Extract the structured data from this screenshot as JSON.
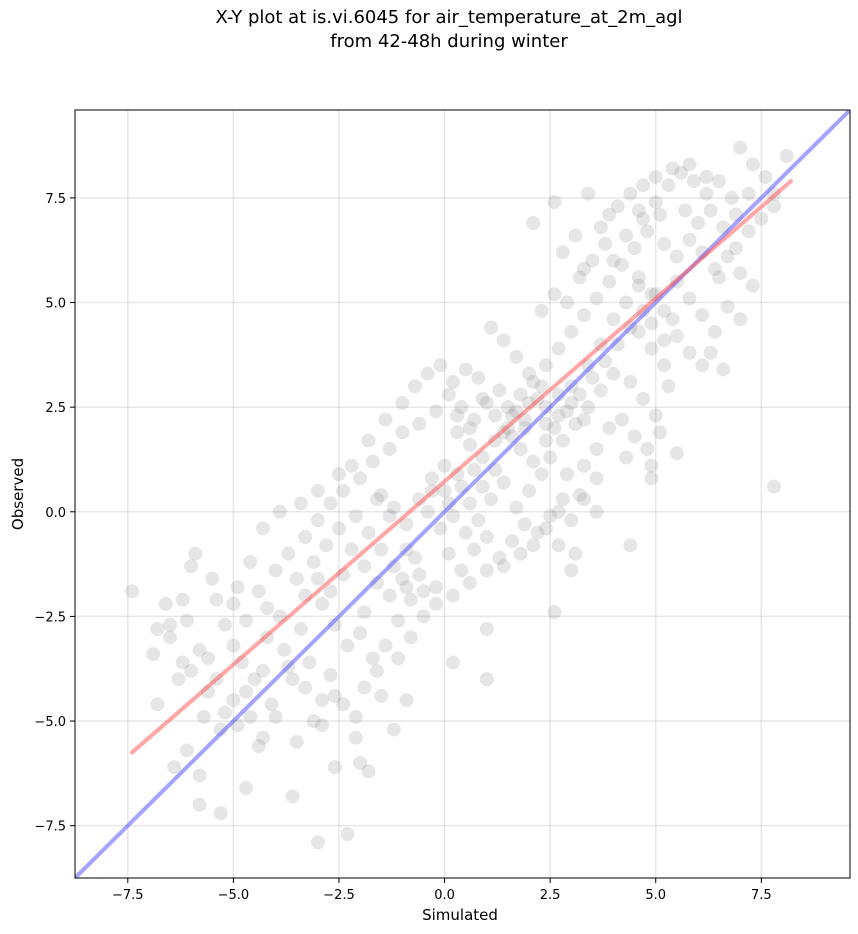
{
  "chart_data": {
    "type": "scatter",
    "title": "X-Y plot at is.vi.6045 for air_temperature_at_2m_agl",
    "subtitle": "from 42-48h during winter",
    "xlabel": "Simulated",
    "ylabel": "Observed",
    "xlim": [
      -8.75,
      9.6
    ],
    "ylim": [
      -8.75,
      9.6
    ],
    "xticks": [
      -7.5,
      -5.0,
      -2.5,
      0.0,
      2.5,
      5.0,
      7.5
    ],
    "yticks": [
      -7.5,
      -5.0,
      -2.5,
      0.0,
      2.5,
      5.0,
      7.5
    ],
    "xtick_labels": [
      "−7.5",
      "−5.0",
      "−2.5",
      "0.0",
      "2.5",
      "5.0",
      "7.5"
    ],
    "ytick_labels": [
      "−7.5",
      "−5.0",
      "−2.5",
      "0.0",
      "2.5",
      "5.0",
      "7.5"
    ],
    "grid": true,
    "point_color": "#808080",
    "regression_color": "#ff4d4d",
    "identity_color": "#4a4aff",
    "regression_line": {
      "x": [
        -7.4,
        8.2
      ],
      "y": [
        -5.75,
        7.9
      ]
    },
    "identity_line": {
      "x": [
        -8.75,
        9.6
      ],
      "y": [
        -8.75,
        9.6
      ]
    },
    "points": [
      [
        -7.4,
        -1.9
      ],
      [
        -6.8,
        -2.8
      ],
      [
        -6.2,
        -2.1
      ],
      [
        -5.9,
        -1.0
      ],
      [
        -5.5,
        -1.6
      ],
      [
        -5.0,
        -2.2
      ],
      [
        -6.5,
        -3.0
      ],
      [
        -6.9,
        -3.4
      ],
      [
        -6.0,
        -3.8
      ],
      [
        -5.6,
        -4.3
      ],
      [
        -6.3,
        -4.0
      ],
      [
        -6.8,
        -4.6
      ],
      [
        -5.7,
        -4.9
      ],
      [
        -5.2,
        -4.8
      ],
      [
        -4.9,
        -5.1
      ],
      [
        -4.6,
        -4.9
      ],
      [
        -6.1,
        -5.7
      ],
      [
        -6.4,
        -6.1
      ],
      [
        -5.8,
        -6.3
      ],
      [
        -5.8,
        -7.0
      ],
      [
        -5.3,
        -7.2
      ],
      [
        -4.7,
        -6.6
      ],
      [
        -4.3,
        -5.4
      ],
      [
        -4.0,
        -4.9
      ],
      [
        -3.6,
        -6.8
      ],
      [
        -3.0,
        -7.9
      ],
      [
        -2.3,
        -7.7
      ],
      [
        -2.0,
        -6.0
      ],
      [
        -1.8,
        -6.2
      ],
      [
        -2.1,
        -5.4
      ],
      [
        -2.6,
        -6.1
      ],
      [
        -3.1,
        -5.0
      ],
      [
        -2.9,
        -5.1
      ],
      [
        -2.6,
        -4.4
      ],
      [
        -3.3,
        -4.2
      ],
      [
        -3.6,
        -4.0
      ],
      [
        -4.1,
        -4.6
      ],
      [
        -4.5,
        -4.0
      ],
      [
        -4.8,
        -3.6
      ],
      [
        -5.0,
        -3.2
      ],
      [
        -4.7,
        -2.6
      ],
      [
        -4.2,
        -2.3
      ],
      [
        -4.4,
        -1.9
      ],
      [
        -4.0,
        -1.4
      ],
      [
        -3.7,
        -1.0
      ],
      [
        -3.3,
        -0.6
      ],
      [
        -3.0,
        -0.2
      ],
      [
        -2.7,
        0.2
      ],
      [
        -2.4,
        0.5
      ],
      [
        -2.0,
        0.8
      ],
      [
        -1.7,
        1.2
      ],
      [
        -1.3,
        1.5
      ],
      [
        -1.0,
        1.9
      ],
      [
        -2.2,
        1.1
      ],
      [
        -1.5,
        0.4
      ],
      [
        -1.2,
        0.1
      ],
      [
        -0.9,
        -0.3
      ],
      [
        -0.6,
        0.3
      ],
      [
        -0.3,
        0.8
      ],
      [
        0.0,
        1.1
      ],
      [
        -3.5,
        -1.6
      ],
      [
        -3.1,
        -1.2
      ],
      [
        -2.8,
        -0.8
      ],
      [
        -2.5,
        -0.4
      ],
      [
        -2.2,
        -0.9
      ],
      [
        -1.9,
        -1.3
      ],
      [
        -1.6,
        -1.7
      ],
      [
        -1.3,
        -2.0
      ],
      [
        -1.0,
        -1.6
      ],
      [
        -0.7,
        -1.1
      ],
      [
        -2.9,
        -2.2
      ],
      [
        -2.6,
        -2.7
      ],
      [
        -2.3,
        -3.2
      ],
      [
        -2.0,
        -2.9
      ],
      [
        -1.7,
        -3.5
      ],
      [
        -1.4,
        -3.2
      ],
      [
        -1.1,
        -2.6
      ],
      [
        -0.8,
        -2.1
      ],
      [
        -3.4,
        -2.8
      ],
      [
        -3.8,
        -3.3
      ],
      [
        -4.2,
        -3.0
      ],
      [
        -3.9,
        -2.5
      ],
      [
        -3.2,
        -3.6
      ],
      [
        -2.7,
        -3.9
      ],
      [
        -2.4,
        -4.6
      ],
      [
        -1.9,
        -4.2
      ],
      [
        -1.6,
        -3.8
      ],
      [
        -1.2,
        -5.2
      ],
      [
        -0.9,
        -4.5
      ],
      [
        -3.5,
        -5.5
      ],
      [
        -4.4,
        -5.6
      ],
      [
        -5.3,
        -5.2
      ],
      [
        -5.6,
        -3.5
      ],
      [
        -6.1,
        -2.6
      ],
      [
        -5.2,
        -2.7
      ],
      [
        -4.9,
        -1.8
      ],
      [
        -5.4,
        -2.1
      ],
      [
        -6.6,
        -2.2
      ],
      [
        -6.0,
        -1.3
      ],
      [
        -4.6,
        -1.2
      ],
      [
        -4.3,
        -0.4
      ],
      [
        -3.9,
        0.0
      ],
      [
        -3.4,
        0.2
      ],
      [
        -3.0,
        0.5
      ],
      [
        -2.5,
        0.9
      ],
      [
        -1.8,
        1.7
      ],
      [
        -1.4,
        2.2
      ],
      [
        -1.0,
        2.6
      ],
      [
        -0.7,
        3.0
      ],
      [
        -0.4,
        3.3
      ],
      [
        -0.1,
        3.5
      ],
      [
        0.2,
        3.1
      ],
      [
        0.5,
        3.4
      ],
      [
        0.8,
        3.2
      ],
      [
        -0.6,
        2.1
      ],
      [
        -0.2,
        2.4
      ],
      [
        0.1,
        2.8
      ],
      [
        0.4,
        2.5
      ],
      [
        0.7,
        2.2
      ],
      [
        1.0,
        2.6
      ],
      [
        1.3,
        2.9
      ],
      [
        1.6,
        2.3
      ],
      [
        1.9,
        2.0
      ],
      [
        2.2,
        2.7
      ],
      [
        0.3,
        1.9
      ],
      [
        0.6,
        1.6
      ],
      [
        0.9,
        1.3
      ],
      [
        1.2,
        1.7
      ],
      [
        1.5,
        2.0
      ],
      [
        1.8,
        1.5
      ],
      [
        0.0,
        0.5
      ],
      [
        0.3,
        0.9
      ],
      [
        0.6,
        0.2
      ],
      [
        0.9,
        0.6
      ],
      [
        1.2,
        1.0
      ],
      [
        -0.4,
        0.0
      ],
      [
        -0.1,
        -0.4
      ],
      [
        0.2,
        -0.1
      ],
      [
        0.5,
        -0.5
      ],
      [
        0.8,
        -0.2
      ],
      [
        1.1,
        0.3
      ],
      [
        1.4,
        0.7
      ],
      [
        1.7,
        0.1
      ],
      [
        2.0,
        0.5
      ],
      [
        2.3,
        0.9
      ],
      [
        0.1,
        -1.0
      ],
      [
        0.4,
        -1.4
      ],
      [
        0.7,
        -0.9
      ],
      [
        1.0,
        -0.6
      ],
      [
        1.3,
        -1.1
      ],
      [
        1.6,
        -0.7
      ],
      [
        1.9,
        -0.3
      ],
      [
        2.2,
        -0.5
      ],
      [
        2.5,
        -0.1
      ],
      [
        2.8,
        0.3
      ],
      [
        3.1,
        -1.0
      ],
      [
        3.0,
        -1.4
      ],
      [
        2.7,
        -0.8
      ],
      [
        -0.5,
        -1.9
      ],
      [
        -0.2,
        -2.2
      ],
      [
        0.2,
        -3.6
      ],
      [
        1.0,
        -2.8
      ],
      [
        1.0,
        -4.0
      ],
      [
        2.6,
        -2.4
      ],
      [
        4.4,
        -0.8
      ],
      [
        7.8,
        0.6
      ],
      [
        -0.9,
        -0.9
      ],
      [
        -0.6,
        -1.5
      ],
      [
        -1.3,
        -0.1
      ],
      [
        -1.6,
        0.3
      ],
      [
        2.5,
        1.3
      ],
      [
        2.8,
        1.7
      ],
      [
        3.1,
        2.1
      ],
      [
        3.4,
        2.5
      ],
      [
        3.7,
        2.9
      ],
      [
        4.0,
        3.3
      ],
      [
        2.6,
        2.0
      ],
      [
        2.9,
        2.4
      ],
      [
        3.2,
        2.8
      ],
      [
        3.5,
        3.2
      ],
      [
        3.8,
        3.6
      ],
      [
        4.1,
        4.0
      ],
      [
        4.4,
        4.4
      ],
      [
        4.7,
        4.8
      ],
      [
        5.0,
        5.2
      ],
      [
        2.4,
        3.5
      ],
      [
        2.7,
        3.9
      ],
      [
        3.0,
        4.3
      ],
      [
        3.3,
        4.7
      ],
      [
        3.6,
        5.1
      ],
      [
        3.9,
        5.5
      ],
      [
        4.2,
        5.9
      ],
      [
        4.5,
        6.3
      ],
      [
        4.8,
        6.7
      ],
      [
        5.1,
        7.1
      ],
      [
        2.0,
        3.3
      ],
      [
        1.7,
        3.7
      ],
      [
        1.4,
        4.1
      ],
      [
        1.1,
        4.4
      ],
      [
        2.3,
        4.8
      ],
      [
        2.6,
        5.2
      ],
      [
        2.9,
        5.0
      ],
      [
        3.2,
        5.6
      ],
      [
        3.5,
        6.0
      ],
      [
        3.8,
        6.4
      ],
      [
        2.1,
        6.9
      ],
      [
        2.6,
        7.4
      ],
      [
        3.4,
        7.6
      ],
      [
        4.1,
        7.3
      ],
      [
        4.4,
        7.6
      ],
      [
        4.7,
        7.0
      ],
      [
        5.0,
        7.4
      ],
      [
        5.3,
        7.8
      ],
      [
        5.6,
        8.1
      ],
      [
        5.9,
        7.9
      ],
      [
        6.2,
        7.6
      ],
      [
        6.5,
        7.9
      ],
      [
        6.8,
        7.5
      ],
      [
        7.0,
        8.7
      ],
      [
        7.3,
        8.3
      ],
      [
        7.6,
        8.0
      ],
      [
        7.8,
        7.6
      ],
      [
        8.1,
        8.5
      ],
      [
        5.4,
        8.2
      ],
      [
        5.7,
        7.2
      ],
      [
        6.0,
        6.9
      ],
      [
        6.3,
        7.2
      ],
      [
        6.6,
        6.8
      ],
      [
        6.9,
        7.1
      ],
      [
        7.2,
        6.7
      ],
      [
        7.5,
        7.0
      ],
      [
        7.8,
        7.3
      ],
      [
        5.2,
        6.4
      ],
      [
        5.5,
        6.1
      ],
      [
        5.8,
        6.5
      ],
      [
        6.1,
        6.2
      ],
      [
        6.4,
        5.8
      ],
      [
        6.7,
        6.1
      ],
      [
        7.0,
        5.7
      ],
      [
        7.3,
        5.4
      ],
      [
        4.6,
        5.6
      ],
      [
        4.9,
        5.2
      ],
      [
        5.2,
        4.8
      ],
      [
        5.5,
        5.5
      ],
      [
        5.8,
        5.1
      ],
      [
        6.1,
        4.7
      ],
      [
        6.4,
        4.3
      ],
      [
        6.7,
        4.9
      ],
      [
        7.0,
        4.6
      ],
      [
        4.6,
        4.3
      ],
      [
        4.9,
        3.9
      ],
      [
        5.2,
        3.5
      ],
      [
        5.5,
        4.2
      ],
      [
        5.8,
        3.8
      ],
      [
        6.1,
        3.5
      ],
      [
        4.4,
        3.1
      ],
      [
        4.7,
        2.7
      ],
      [
        5.0,
        2.3
      ],
      [
        5.3,
        3.0
      ],
      [
        4.2,
        2.2
      ],
      [
        4.5,
        1.8
      ],
      [
        4.8,
        1.5
      ],
      [
        5.1,
        1.9
      ],
      [
        5.5,
        1.4
      ],
      [
        4.9,
        1.1
      ],
      [
        4.9,
        0.8
      ],
      [
        4.3,
        1.3
      ],
      [
        3.9,
        2.0
      ],
      [
        3.6,
        1.5
      ],
      [
        3.3,
        1.1
      ],
      [
        3.6,
        0.8
      ],
      [
        3.2,
        0.4
      ],
      [
        2.9,
        0.9
      ],
      [
        2.4,
        1.7
      ],
      [
        2.1,
        1.2
      ],
      [
        3.4,
        3.5
      ],
      [
        3.7,
        4.0
      ],
      [
        4.0,
        4.6
      ],
      [
        4.3,
        5.0
      ],
      [
        4.6,
        5.4
      ],
      [
        4.0,
        6.0
      ],
      [
        4.3,
        6.6
      ],
      [
        4.6,
        7.2
      ],
      [
        3.7,
        6.8
      ],
      [
        3.1,
        6.6
      ],
      [
        2.8,
        6.2
      ],
      [
        3.3,
        5.8
      ],
      [
        4.9,
        4.5
      ],
      [
        5.2,
        4.1
      ],
      [
        5.4,
        4.6
      ],
      [
        6.3,
        3.8
      ],
      [
        6.6,
        3.4
      ],
      [
        6.5,
        5.6
      ],
      [
        6.9,
        6.3
      ],
      [
        7.2,
        7.6
      ],
      [
        6.2,
        8.0
      ],
      [
        5.8,
        8.3
      ],
      [
        5.0,
        8.0
      ],
      [
        4.7,
        7.8
      ],
      [
        3.9,
        7.1
      ],
      [
        1.5,
        2.5
      ],
      [
        1.8,
        2.8
      ],
      [
        2.1,
        3.1
      ],
      [
        2.4,
        2.5
      ],
      [
        2.7,
        2.8
      ],
      [
        3.0,
        2.6
      ],
      [
        3.3,
        2.2
      ],
      [
        3.0,
        3.0
      ],
      [
        2.7,
        2.3
      ],
      [
        2.4,
        2.1
      ],
      [
        1.2,
        2.3
      ],
      [
        0.9,
        2.7
      ],
      [
        0.6,
        2.0
      ],
      [
        0.3,
        2.3
      ],
      [
        1.4,
        1.9
      ],
      [
        1.7,
        2.4
      ],
      [
        2.0,
        2.6
      ],
      [
        2.3,
        3.0
      ],
      [
        1.9,
        2.2
      ],
      [
        1.6,
        1.8
      ],
      [
        -1.8,
        -0.5
      ],
      [
        -2.1,
        -0.1
      ],
      [
        -1.5,
        -0.9
      ],
      [
        -1.2,
        -1.3
      ],
      [
        -0.9,
        -1.8
      ],
      [
        -2.4,
        -1.5
      ],
      [
        -2.7,
        -1.9
      ],
      [
        -3.0,
        -1.6
      ],
      [
        -3.3,
        -2.0
      ],
      [
        -1.9,
        -2.4
      ],
      [
        -3.7,
        -3.7
      ],
      [
        -4.3,
        -3.8
      ],
      [
        -4.7,
        -4.3
      ],
      [
        -5.0,
        -4.5
      ],
      [
        -5.4,
        -4.0
      ],
      [
        -5.8,
        -3.3
      ],
      [
        -6.2,
        -3.6
      ],
      [
        -6.5,
        -2.7
      ],
      [
        -2.9,
        -4.5
      ],
      [
        -2.1,
        -4.9
      ],
      [
        -1.5,
        -4.4
      ],
      [
        -1.1,
        -3.5
      ],
      [
        -0.8,
        -3.0
      ],
      [
        -0.5,
        -2.5
      ],
      [
        -0.2,
        -1.8
      ],
      [
        0.2,
        -2.0
      ],
      [
        0.6,
        -1.7
      ],
      [
        1.0,
        -1.4
      ],
      [
        1.4,
        -1.3
      ],
      [
        1.8,
        -1.0
      ],
      [
        2.1,
        -0.8
      ],
      [
        2.4,
        -0.4
      ],
      [
        2.7,
        0.0
      ],
      [
        3.0,
        -0.2
      ],
      [
        3.3,
        0.3
      ],
      [
        3.6,
        0.0
      ],
      [
        -0.3,
        0.5
      ],
      [
        0.1,
        0.2
      ],
      [
        0.4,
        0.6
      ],
      [
        0.7,
        1.0
      ]
    ]
  }
}
